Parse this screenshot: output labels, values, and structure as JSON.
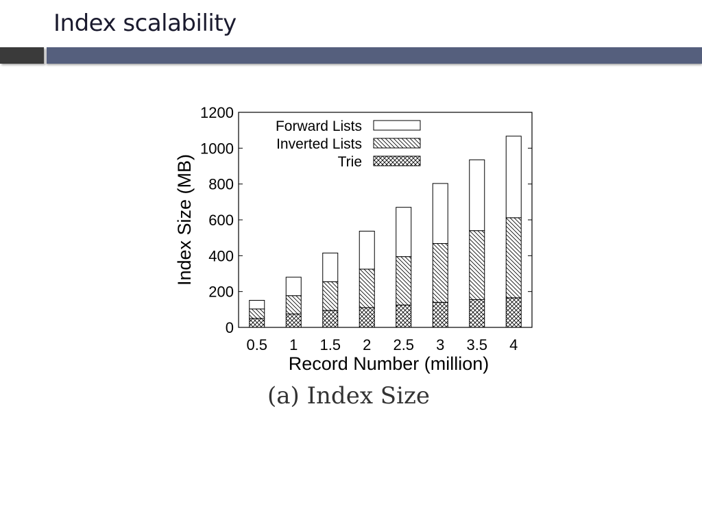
{
  "slide": {
    "title": "Index scalability"
  },
  "figure": {
    "caption": "(a) Index Size"
  },
  "chart_data": {
    "type": "bar",
    "stacked": true,
    "xlabel": "Record Number (million)",
    "ylabel": "Index Size (MB)",
    "categories": [
      "0.5",
      "1",
      "1.5",
      "2",
      "2.5",
      "3",
      "3.5",
      "4"
    ],
    "ylim": [
      0,
      1200
    ],
    "yticks": [
      0,
      200,
      400,
      600,
      800,
      1000,
      1200
    ],
    "series": [
      {
        "name": "Trie",
        "pattern": "crosshatch",
        "values": [
          50,
          75,
          95,
          110,
          125,
          140,
          155,
          165
        ]
      },
      {
        "name": "Inverted Lists",
        "pattern": "diagonal",
        "values": [
          53,
          102,
          160,
          215,
          270,
          328,
          385,
          447
        ]
      },
      {
        "name": "Forward Lists",
        "pattern": "blank",
        "values": [
          48,
          103,
          160,
          212,
          275,
          335,
          395,
          455
        ]
      }
    ],
    "legend_order": [
      "Forward Lists",
      "Inverted Lists",
      "Trie"
    ],
    "legend_position": "top-left",
    "grid": false
  }
}
